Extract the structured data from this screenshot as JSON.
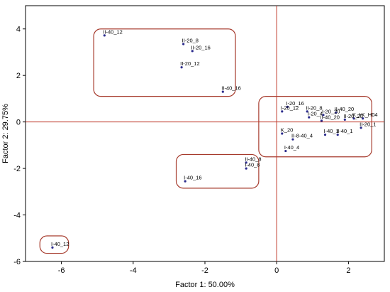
{
  "chart_data": {
    "type": "scatter",
    "title": "",
    "xlabel": "Factor 1: 50.00%",
    "ylabel": "Factor 2: 29.75%",
    "xlim": [
      -7,
      3
    ],
    "ylim": [
      -6,
      5
    ],
    "xticks": [
      -6,
      -4,
      -2,
      0,
      2
    ],
    "yticks": [
      -6,
      -4,
      -2,
      0,
      2,
      4
    ],
    "x_tick_labels": [
      "-6",
      "-4",
      "-2",
      "0",
      "2"
    ],
    "y_tick_labels": [
      "-6",
      "-4",
      "-2",
      "0",
      "2",
      "4"
    ],
    "grid": false,
    "reference_lines": {
      "x": 0,
      "y": 0,
      "color": "#c0392b"
    },
    "point_color": "#2b2b8c",
    "group_box_color": "#a63a2c",
    "points": [
      {
        "label": "II-40_12",
        "x": -4.8,
        "y": 3.72
      },
      {
        "label": "II-20_8",
        "x": -2.6,
        "y": 3.35
      },
      {
        "label": "II-20_16",
        "x": -2.35,
        "y": 3.05
      },
      {
        "label": "II-20_12",
        "x": -2.65,
        "y": 2.35
      },
      {
        "label": "II-40_16",
        "x": -1.5,
        "y": 1.3
      },
      {
        "label": "I-20_16",
        "x": 0.3,
        "y": 0.65
      },
      {
        "label": "I-20_12",
        "x": 0.15,
        "y": 0.45
      },
      {
        "label": "II-20_8",
        "x": 0.85,
        "y": 0.45
      },
      {
        "label": "I-20_4",
        "x": 0.9,
        "y": 0.2
      },
      {
        "label": "I-20_20",
        "x": 1.3,
        "y": 0.3
      },
      {
        "label": "II-40_20",
        "x": 1.65,
        "y": 0.4
      },
      {
        "label": "II-20_20",
        "x": 1.9,
        "y": 0.1
      },
      {
        "label": "II-40_20",
        "x": 1.25,
        "y": 0.05
      },
      {
        "label": "K_H",
        "x": 2.15,
        "y": 0.15
      },
      {
        "label": "K_H04",
        "x": 2.4,
        "y": 0.15
      },
      {
        "label": "II-20_1",
        "x": 2.35,
        "y": -0.25
      },
      {
        "label": "I-40_1",
        "x": 1.35,
        "y": -0.55
      },
      {
        "label": "II-40_1",
        "x": 1.7,
        "y": -0.55
      },
      {
        "label": "K_20",
        "x": 0.15,
        "y": -0.5
      },
      {
        "label": "II-8-40_4",
        "x": 0.45,
        "y": -0.75
      },
      {
        "label": "I-40_4",
        "x": 0.25,
        "y": -1.25
      },
      {
        "label": "II-40_8",
        "x": -0.85,
        "y": -1.75
      },
      {
        "label": "I-40_8",
        "x": -0.85,
        "y": -2.0
      },
      {
        "label": "I-40_16",
        "x": -2.55,
        "y": -2.55
      },
      {
        "label": "I-40_12",
        "x": -6.25,
        "y": -5.4
      }
    ],
    "group_boxes": [
      {
        "x_range": [
          -5.1,
          -1.15
        ],
        "y_range": [
          1.1,
          4.0
        ]
      },
      {
        "x_range": [
          -0.5,
          2.65
        ],
        "y_range": [
          -1.5,
          1.1
        ]
      },
      {
        "x_range": [
          -2.8,
          -0.5
        ],
        "y_range": [
          -2.85,
          -1.4
        ]
      },
      {
        "x_range": [
          -6.6,
          -5.8
        ],
        "y_range": [
          -5.65,
          -4.9
        ]
      }
    ]
  }
}
